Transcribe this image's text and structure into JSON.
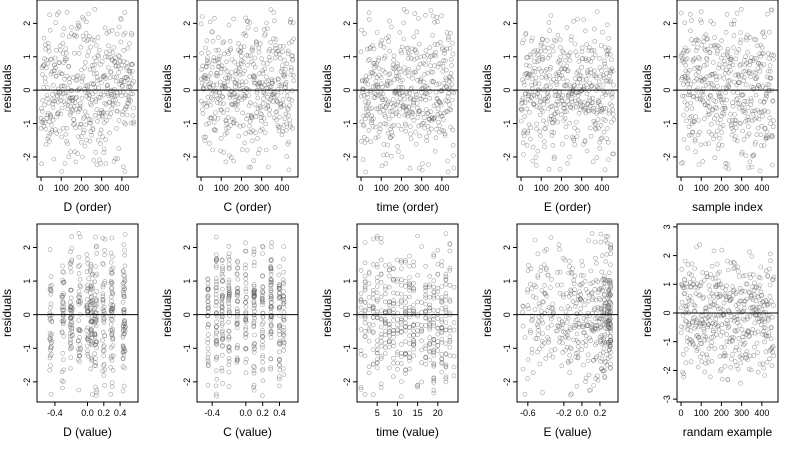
{
  "figure": {
    "rows": 2,
    "cols": 5
  },
  "chart_data": [
    {
      "type": "scatter",
      "xlabel": "D (order)",
      "ylabel": "residuals",
      "xlim": [
        -20,
        480
      ],
      "ylim": [
        -2.6,
        2.7
      ],
      "xticks": [
        0,
        100,
        200,
        300,
        400
      ],
      "yticks": [
        -2,
        -1,
        0,
        1,
        2
      ],
      "n_points": 460,
      "pattern": "order",
      "seed": 11,
      "hline": 0
    },
    {
      "type": "scatter",
      "xlabel": "C (order)",
      "ylabel": "residuals",
      "xlim": [
        -20,
        480
      ],
      "ylim": [
        -2.6,
        2.7
      ],
      "xticks": [
        0,
        100,
        200,
        300,
        400
      ],
      "yticks": [
        -2,
        -1,
        0,
        1,
        2
      ],
      "n_points": 460,
      "pattern": "order",
      "seed": 23,
      "hline": 0
    },
    {
      "type": "scatter",
      "xlabel": "time (order)",
      "ylabel": "residuals",
      "xlim": [
        -20,
        480
      ],
      "ylim": [
        -2.6,
        2.7
      ],
      "xticks": [
        0,
        100,
        200,
        300,
        400
      ],
      "yticks": [
        -2,
        -1,
        0,
        1,
        2
      ],
      "n_points": 460,
      "pattern": "order",
      "seed": 37,
      "hline": 0
    },
    {
      "type": "scatter",
      "xlabel": "E (order)",
      "ylabel": "residuals",
      "xlim": [
        -20,
        480
      ],
      "ylim": [
        -2.6,
        2.7
      ],
      "xticks": [
        0,
        100,
        200,
        300,
        400
      ],
      "yticks": [
        -2,
        -1,
        0,
        1,
        2
      ],
      "n_points": 460,
      "pattern": "order",
      "seed": 41,
      "hline": 0
    },
    {
      "type": "scatter",
      "xlabel": "sample index",
      "ylabel": "residuals",
      "xlim": [
        -20,
        480
      ],
      "ylim": [
        -2.6,
        2.7
      ],
      "xticks": [
        0,
        100,
        200,
        300,
        400
      ],
      "yticks": [
        -2,
        -1,
        0,
        1,
        2
      ],
      "n_points": 460,
      "pattern": "order",
      "seed": 53,
      "hline": 0
    },
    {
      "type": "scatter",
      "xlabel": "D (value)",
      "ylabel": "residuals",
      "xlim": [
        -0.62,
        0.62
      ],
      "ylim": [
        -2.6,
        2.7
      ],
      "xticks": [
        -0.4,
        0.0,
        0.2,
        0.4
      ],
      "xtick_labels": [
        "-0.4",
        "0.0",
        "0.2",
        "0.4"
      ],
      "yticks": [
        -2,
        -1,
        0,
        1,
        2
      ],
      "n_points": 460,
      "pattern": "value",
      "x_clusters": [
        -0.45,
        -0.3,
        -0.2,
        -0.1,
        0.0,
        0.05,
        0.1,
        0.2,
        0.3,
        0.45
      ],
      "x_spread": 0.015,
      "seed": 67,
      "hline": 0
    },
    {
      "type": "scatter",
      "xlabel": "C (value)",
      "ylabel": "residuals",
      "xlim": [
        -0.58,
        0.62
      ],
      "ylim": [
        -2.6,
        2.7
      ],
      "xticks": [
        -0.4,
        0.0,
        0.2,
        0.4
      ],
      "xtick_labels": [
        "-0.4",
        "0.0",
        "0.2",
        "0.4"
      ],
      "yticks": [
        -2,
        -1,
        0,
        1,
        2
      ],
      "n_points": 460,
      "pattern": "value",
      "x_clusters": [
        -0.45,
        -0.35,
        -0.28,
        -0.2,
        -0.1,
        0.0,
        0.1,
        0.2,
        0.3,
        0.4,
        0.45
      ],
      "x_spread": 0.006,
      "seed": 79,
      "hline": 0
    },
    {
      "type": "scatter",
      "xlabel": "time (value)",
      "ylabel": "residuals",
      "xlim": [
        0,
        25
      ],
      "ylim": [
        -2.6,
        2.7
      ],
      "xticks": [
        5,
        10,
        15,
        20
      ],
      "yticks": [
        -2,
        -1,
        0,
        1,
        2
      ],
      "n_points": 460,
      "pattern": "value",
      "x_range": [
        1,
        24
      ],
      "x_spread": 0.0,
      "integer_x": true,
      "seed": 83,
      "hline": 0
    },
    {
      "type": "scatter",
      "xlabel": "E (value)",
      "ylabel": "residuals",
      "xlim": [
        -0.72,
        0.4
      ],
      "ylim": [
        -2.6,
        2.7
      ],
      "xticks": [
        -0.6,
        -0.2,
        0.0,
        0.2
      ],
      "xtick_labels": [
        "-0.6",
        "-0.2",
        "0.0",
        "0.2"
      ],
      "yticks": [
        -2,
        -1,
        0,
        1,
        2
      ],
      "n_points": 460,
      "pattern": "value",
      "x_skew": true,
      "seed": 97,
      "hline": 0
    },
    {
      "type": "scatter",
      "xlabel": "randam example",
      "ylabel": "residuals",
      "xlim": [
        -20,
        480
      ],
      "ylim": [
        -3.1,
        3.1
      ],
      "xticks": [
        0,
        100,
        200,
        300,
        400
      ],
      "yticks": [
        -3,
        -2,
        -1,
        0,
        1,
        2,
        3
      ],
      "n_points": 460,
      "pattern": "order",
      "seed": 101,
      "hline": 0
    }
  ]
}
